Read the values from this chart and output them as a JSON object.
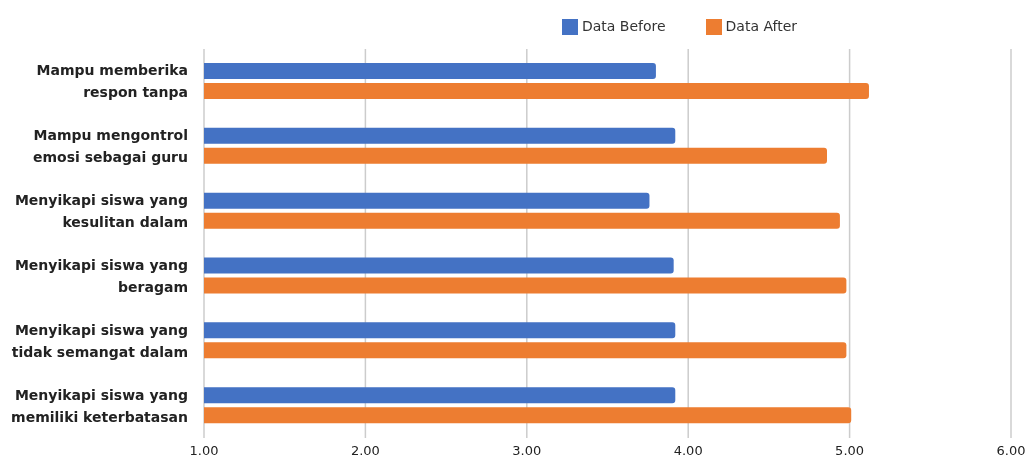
{
  "chart_data": {
    "type": "bar",
    "orientation": "horizontal",
    "categories": [
      "Mampu memberika respon tanpa",
      "Mampu mengontrol emosi sebagai guru",
      "Menyikapi siswa yang kesulitan dalam",
      "Menyikapi siswa yang beragam",
      "Menyikapi siswa yang tidak semangat dalam",
      "Menyikapi siswa yang memiliki keterbatasan"
    ],
    "series": [
      {
        "name": "Data Before",
        "color": "#4472c4",
        "values": [
          3.8,
          3.92,
          3.76,
          3.91,
          3.92,
          3.92
        ]
      },
      {
        "name": "Data After",
        "color": "#ed7d31",
        "values": [
          5.12,
          4.86,
          4.94,
          4.98,
          4.98,
          5.01
        ]
      }
    ],
    "xlim": [
      1,
      6
    ],
    "xticks": [
      {
        "value": 1,
        "label": "1.00"
      },
      {
        "value": 2,
        "label": "2.00"
      },
      {
        "value": 3,
        "label": "3.00"
      },
      {
        "value": 4,
        "label": "4.00"
      },
      {
        "value": 5,
        "label": "5.00"
      },
      {
        "value": 6,
        "label": "6.00"
      }
    ],
    "grid": "x",
    "legend": "top"
  }
}
